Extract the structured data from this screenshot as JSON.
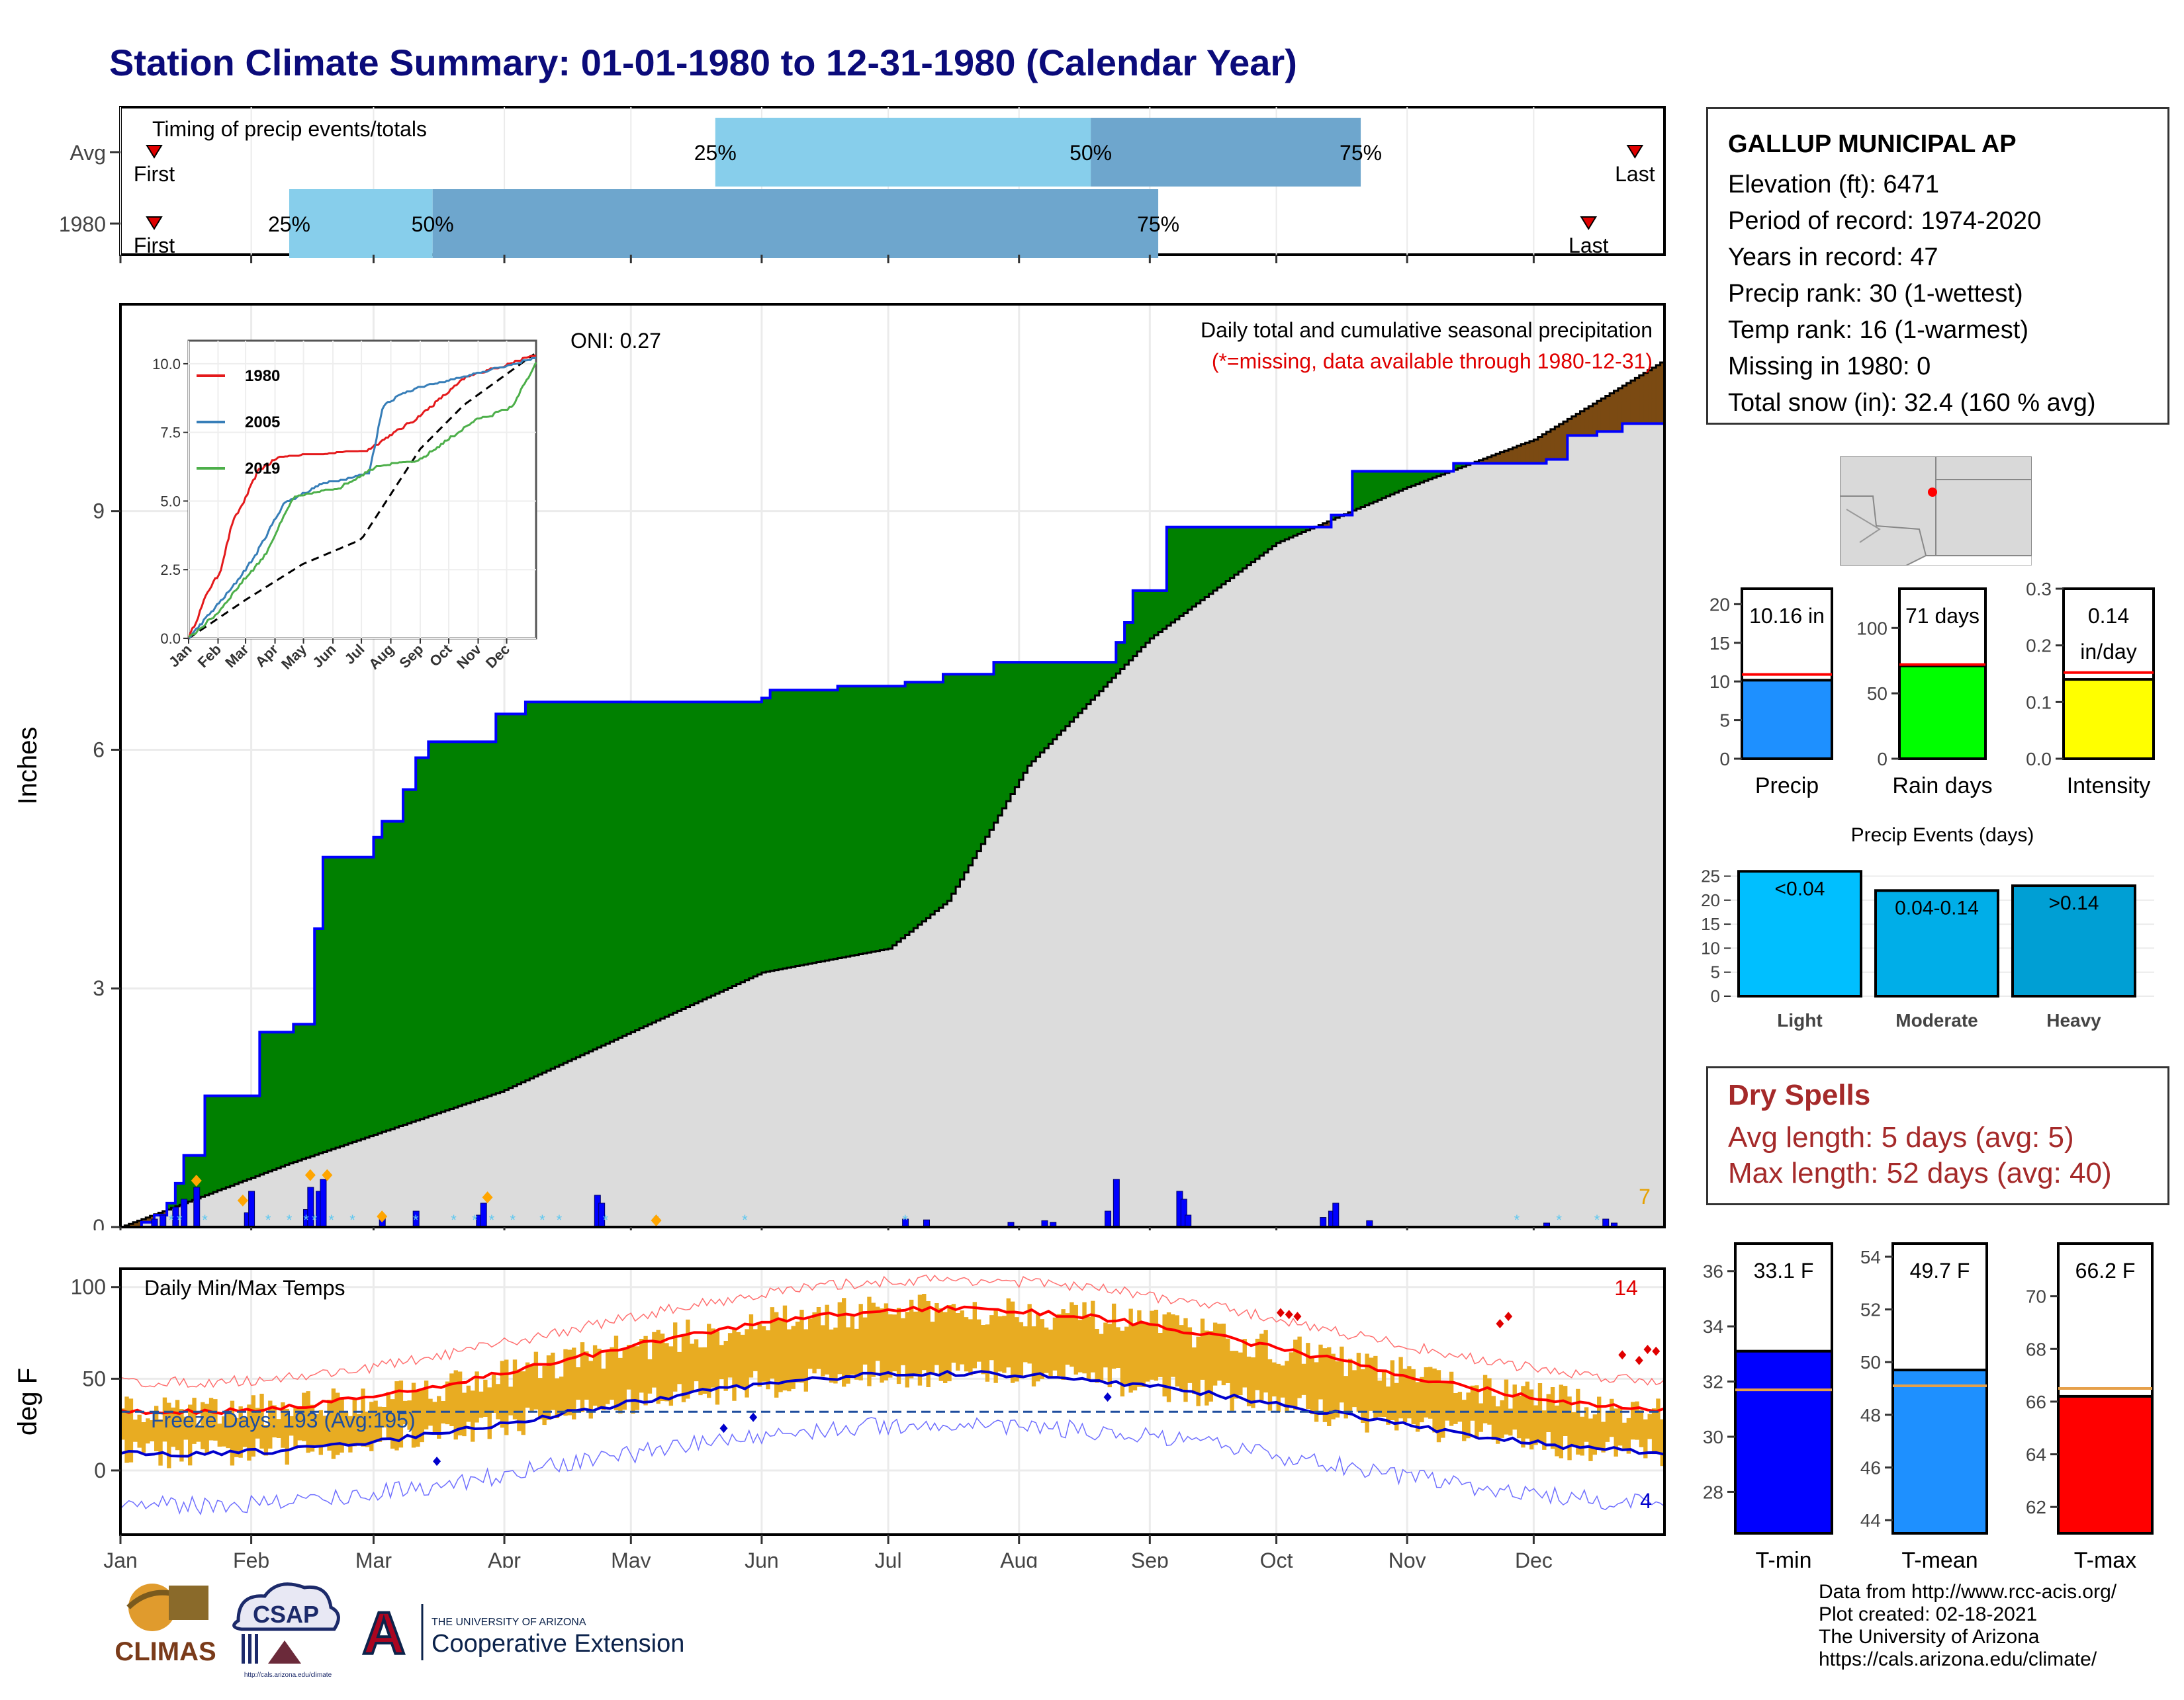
{
  "title": "Station Climate Summary: 01-01-1980 to 12-31-1980 (Calendar Year)",
  "timing": {
    "label": "Timing of precip events/totals",
    "rows": [
      "Avg",
      "1980"
    ],
    "first_label": "First",
    "last_label": "Last",
    "pct_labels": [
      "25%",
      "50%",
      "75%"
    ],
    "avg": {
      "first_doy": 8,
      "p25_doy": 141,
      "p50_doy": 230,
      "p75_doy": 294,
      "last_doy": 359
    },
    "y1980": {
      "first_doy": 8,
      "p25_doy": 40,
      "p50_doy": 74,
      "p75_doy": 246,
      "last_doy": 348
    },
    "light_color": "#87ceeb",
    "dark_color": "#6ea6cd"
  },
  "main": {
    "ylabel": "Inches",
    "yticks": [
      0,
      3,
      6,
      9
    ],
    "ylim": [
      0,
      11.6
    ],
    "right_title": "Daily total and cumulative seasonal precipitation",
    "right_subtitle": "(*=missing, data available through 1980-12-31)",
    "oni": "ONI: 0.27",
    "corner_count": "7",
    "fill_above_color": "#008000",
    "fill_below_color": "#7b4a12",
    "normal_fill_color": "#dcdcdc",
    "observed_line_color": "#0000ff"
  },
  "inset": {
    "yticks": [
      "0.0",
      "2.5",
      "5.0",
      "7.5",
      "10.0"
    ],
    "months": [
      "Jan",
      "Feb",
      "Mar",
      "Apr",
      "May",
      "Jun",
      "Jul",
      "Aug",
      "Sep",
      "Oct",
      "Nov",
      "Dec"
    ],
    "legend": [
      {
        "name": "1980",
        "color": "#e41a1c"
      },
      {
        "name": "2005",
        "color": "#377eb8"
      },
      {
        "name": "2019",
        "color": "#4daf4a"
      }
    ]
  },
  "months": [
    "Jan",
    "Feb",
    "Mar",
    "Apr",
    "May",
    "Jun",
    "Jul",
    "Aug",
    "Sep",
    "Oct",
    "Nov",
    "Dec"
  ],
  "temps": {
    "label": "Daily Min/Max Temps",
    "ylabel": "deg F",
    "yticks": [
      0,
      50,
      100
    ],
    "freeze": "Freeze Days: 193 (Avg:195)",
    "max_count": "14",
    "min_count": "4",
    "bar_color": "#e8ac22"
  },
  "station": {
    "name": "GALLUP MUNICIPAL AP",
    "elevation": "Elevation (ft): 6471",
    "period": "Period of record: 1974-2020",
    "years": "Years in record: 47",
    "precip_rank": "Precip rank: 30 (1-wettest)",
    "temp_rank": "Temp rank: 16 (1-warmest)",
    "missing": "Missing in 1980: 0",
    "snow": "Total snow (in): 32.4 (160 % avg)"
  },
  "chart_data": [
    {
      "type": "bar",
      "title": "",
      "categories": [
        "Precip"
      ],
      "values": [
        10.16
      ],
      "avg": 10.9,
      "ylim": [
        0,
        22
      ],
      "yticks": [
        "0",
        "5",
        "10",
        "15",
        "20"
      ],
      "label": "10.16 in",
      "color": "#1e90ff"
    },
    {
      "type": "bar",
      "categories": [
        "Rain days"
      ],
      "values": [
        71
      ],
      "avg": 72,
      "ylim": [
        0,
        130
      ],
      "yticks": [
        "0",
        "50",
        "100"
      ],
      "label": "71 days",
      "color": "#00ff00"
    },
    {
      "type": "bar",
      "categories": [
        "Intensity"
      ],
      "values": [
        0.14
      ],
      "avg": 0.152,
      "ylim": [
        0,
        0.3
      ],
      "yticks": [
        "0.0",
        "0.1",
        "0.2",
        "0.3"
      ],
      "label": "0.14",
      "label2": "in/day",
      "color": "#ffff00"
    },
    {
      "type": "bar",
      "title": "Precip Events (days)",
      "categories": [
        "Light",
        "Moderate",
        "Heavy"
      ],
      "values": [
        26,
        22,
        23
      ],
      "labels": [
        "<0.04",
        "0.04-0.14",
        ">0.14"
      ],
      "ylim": [
        0,
        27
      ],
      "yticks": [
        "0",
        "5",
        "10",
        "15",
        "20",
        "25"
      ],
      "colors": [
        "#00bfff",
        "#00aee8",
        "#009fd4"
      ]
    },
    {
      "type": "bar",
      "categories": [
        "T-min"
      ],
      "values": [
        33.1
      ],
      "avg": 31.7,
      "ylim": [
        26.5,
        37
      ],
      "yticks": [
        "28",
        "30",
        "32",
        "34",
        "36"
      ],
      "label": "33.1 F",
      "color": "#0000ff"
    },
    {
      "type": "bar",
      "categories": [
        "T-mean"
      ],
      "values": [
        49.7
      ],
      "avg": 49.1,
      "ylim": [
        43.5,
        54.5
      ],
      "yticks": [
        "44",
        "46",
        "48",
        "50",
        "52",
        "54"
      ],
      "label": "49.7 F",
      "color": "#1e90ff"
    },
    {
      "type": "bar",
      "categories": [
        "T-max"
      ],
      "values": [
        66.2
      ],
      "avg": 66.5,
      "ylim": [
        61,
        72
      ],
      "yticks": [
        "62",
        "64",
        "66",
        "68",
        "70"
      ],
      "label": "66.2 F",
      "color": "#ff0000"
    }
  ],
  "dry": {
    "title": "Dry Spells",
    "avg_len": "Avg length: 5 days (avg: 5)",
    "max_len": "Max length: 52 days (avg: 40)"
  },
  "footer": {
    "l1": "Data from http://www.rcc-acis.org/",
    "l2": "Plot created: 02-18-2021",
    "l3": "The University of Arizona",
    "l4": "https://cals.arizona.edu/climate/"
  },
  "logos": {
    "climas": "CLIMAS",
    "csap": "CSAP",
    "csap_url": "http://cals.arizona.edu/climate",
    "ua_letter": "A",
    "ua_top": "THE UNIVERSITY OF ARIZONA",
    "ua_bottom": "Cooperative Extension"
  }
}
